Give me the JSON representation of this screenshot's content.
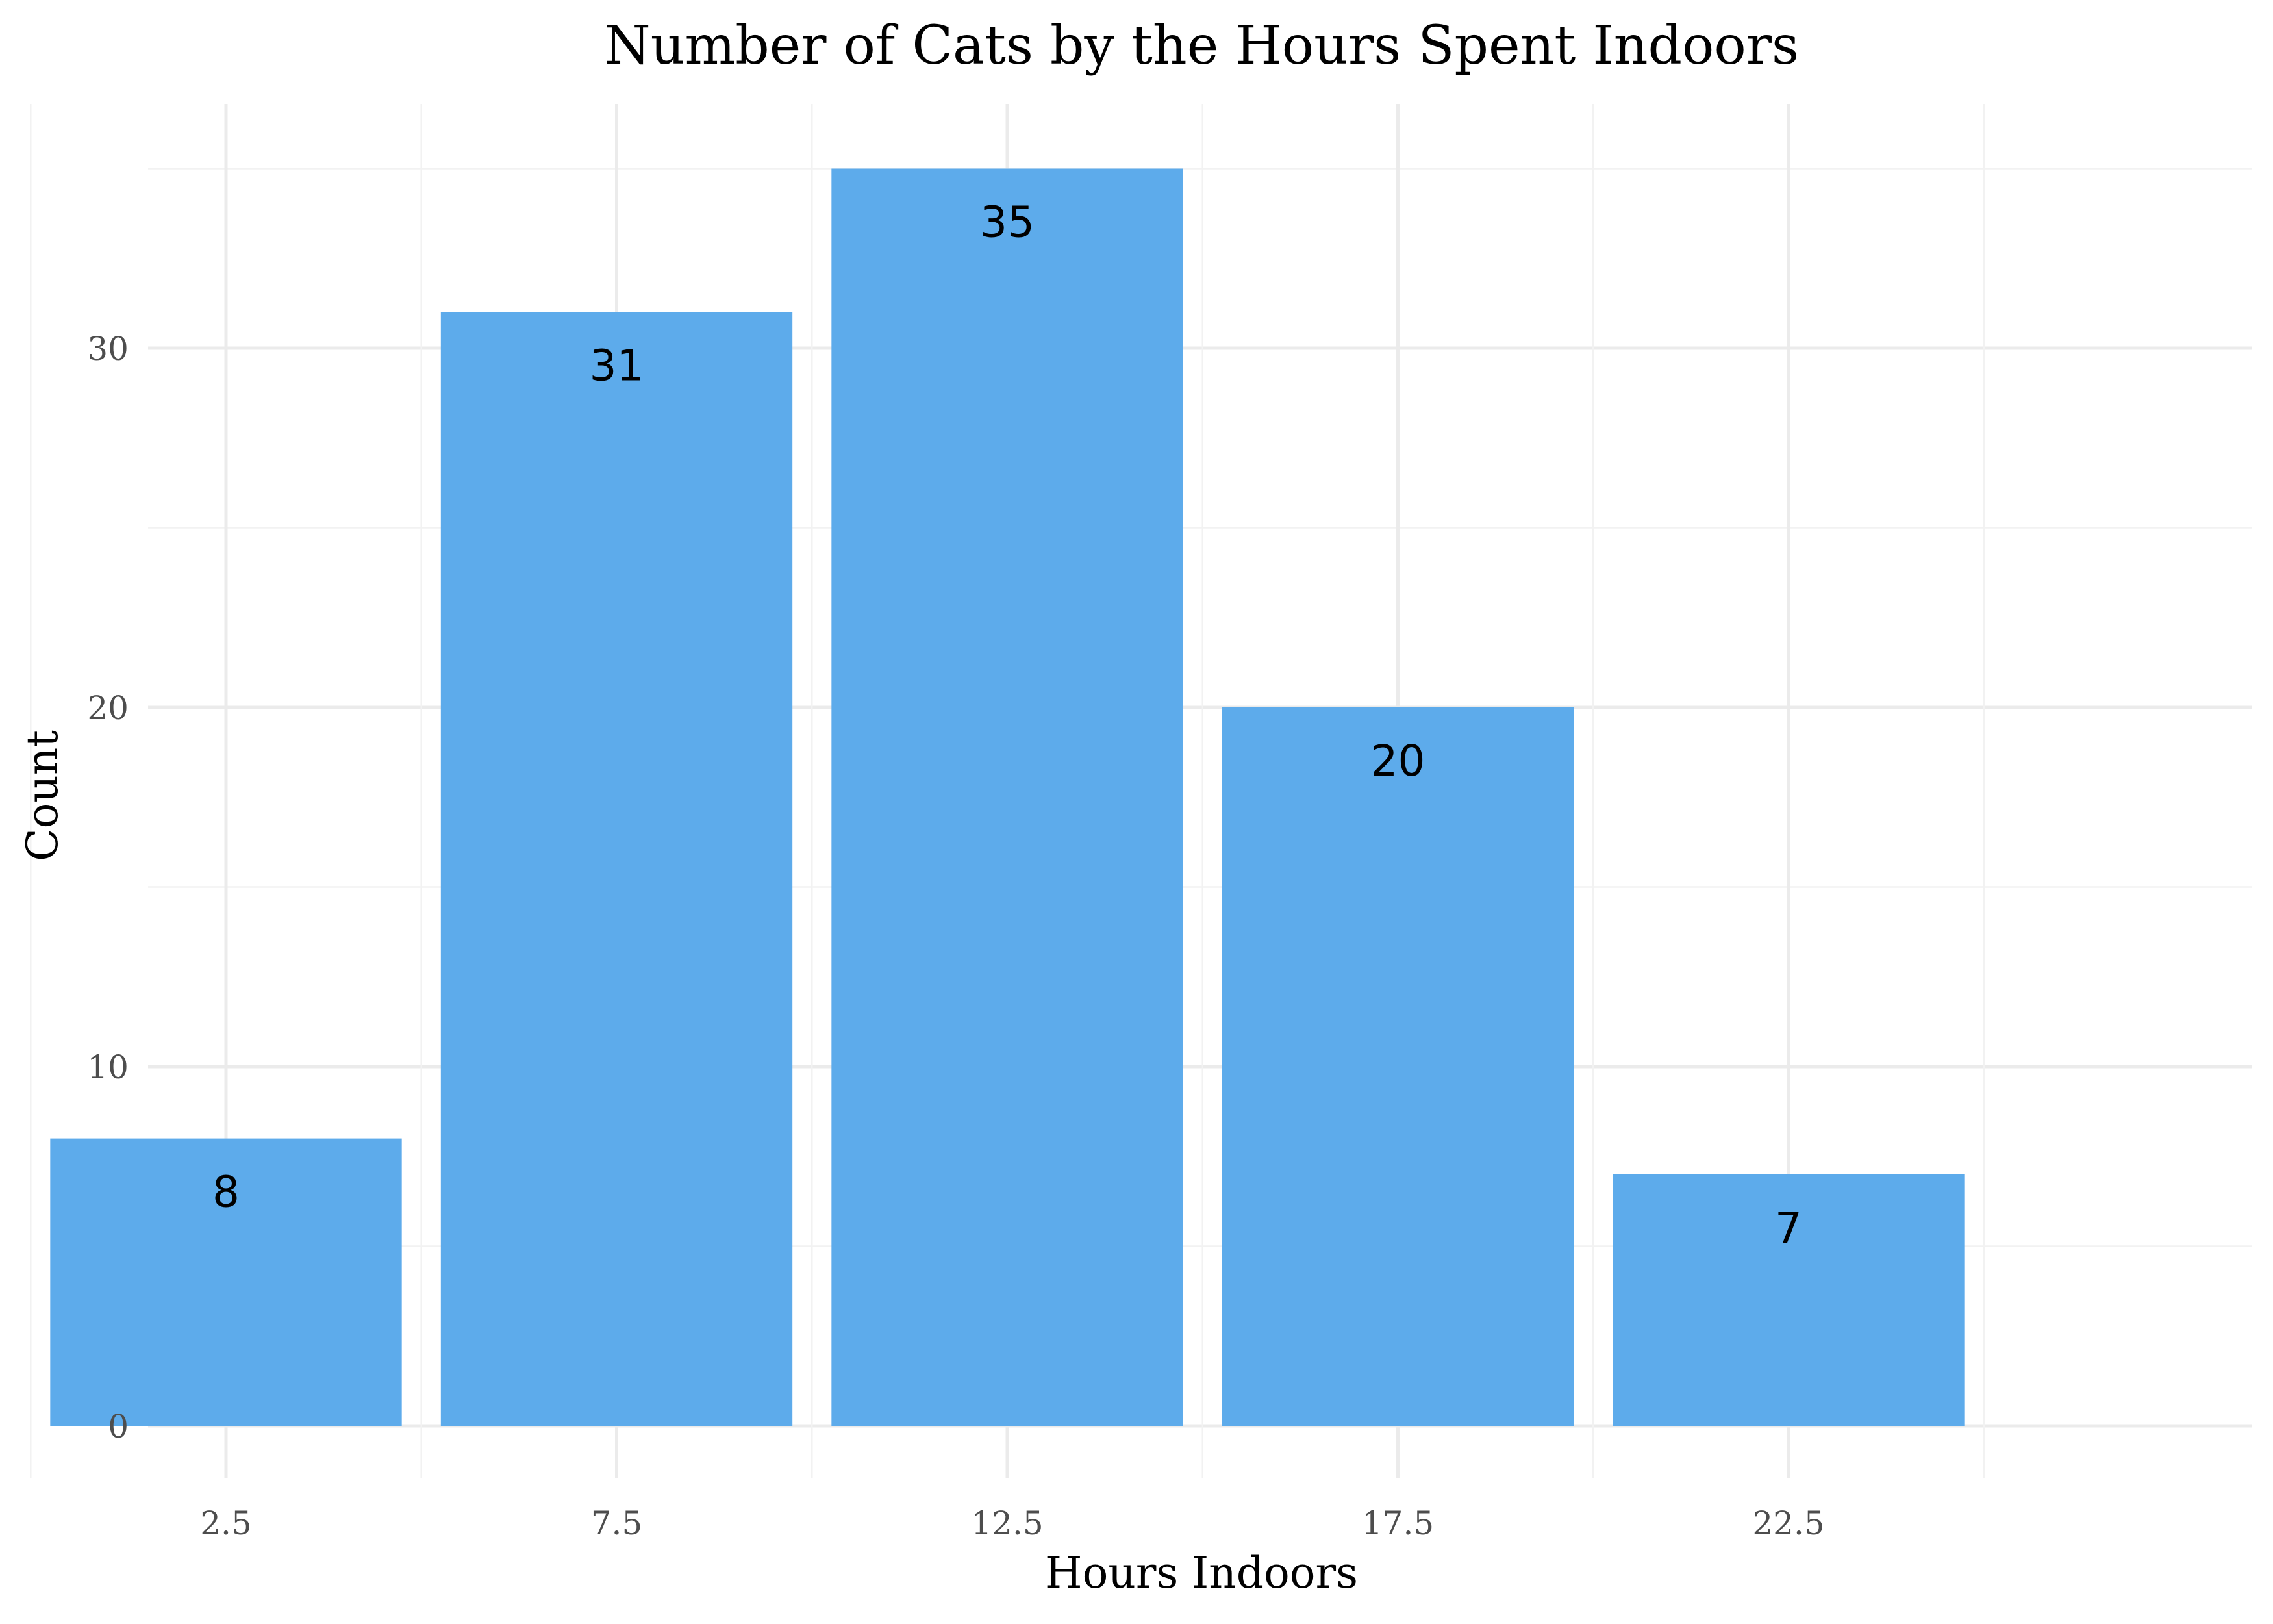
{
  "chart_data": {
    "type": "bar",
    "title": "Number of Cats by the Hours Spent Indoors",
    "xlabel": "Hours Indoors",
    "ylabel": "Count",
    "categories": [
      "2.5",
      "7.5",
      "12.5",
      "17.5",
      "22.5"
    ],
    "x": [
      2.5,
      7.5,
      12.5,
      17.5,
      22.5
    ],
    "values": [
      8,
      31,
      35,
      20,
      7
    ],
    "data_labels": [
      "8",
      "31",
      "35",
      "20",
      "7"
    ],
    "bin_width": 5,
    "y_ticks": [
      0,
      10,
      20,
      30
    ],
    "y_tick_labels": [
      "0",
      "10",
      "20",
      "30"
    ],
    "ylim": [
      0,
      35
    ],
    "xlim": [
      0,
      25
    ],
    "grid": true,
    "legend": "none",
    "bar_color": "#5dabeb",
    "background": "#ffffff"
  }
}
